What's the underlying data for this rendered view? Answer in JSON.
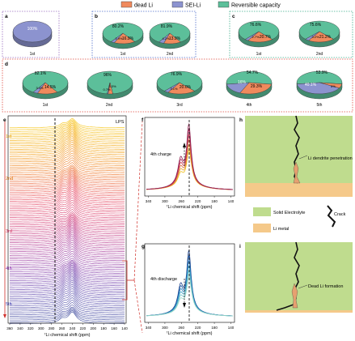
{
  "legend": {
    "items": [
      {
        "label": "dead Li",
        "color": "#f08a5d"
      },
      {
        "label": "SEI-Li",
        "color": "#8c93cf"
      },
      {
        "label": "Reversible capacity",
        "color": "#5cbf9a"
      }
    ]
  },
  "panels": {
    "a": {
      "letter": "a",
      "pies": [
        {
          "label": "1st",
          "values": {
            "dead": 0,
            "sei": 100,
            "rev": 0
          },
          "text": [
            "100%"
          ]
        }
      ]
    },
    "b": {
      "letter": "b",
      "pies": [
        {
          "label": "1st",
          "text": [
            "80.2%",
            "16.9%",
            "2.9%"
          ]
        },
        {
          "label": "2nd",
          "text": [
            "81.9%",
            "13.9%",
            "4.2%"
          ]
        }
      ]
    },
    "c": {
      "letter": "c",
      "pies": [
        {
          "label": "1st",
          "text": [
            "76.6%",
            "20.7%",
            "2.7%"
          ]
        },
        {
          "label": "2nd",
          "text": [
            "75.6%",
            "21.2%",
            "3.2%"
          ]
        }
      ]
    },
    "d": {
      "letter": "d",
      "pies": [
        {
          "label": "1st",
          "text": [
            "82.1%",
            "14.5%",
            "3.4%"
          ]
        },
        {
          "label": "2nd",
          "text": [
            "96%",
            "3.3%",
            "0.7%"
          ]
        },
        {
          "label": "3rd",
          "text": [
            "76.9%",
            "20.0%",
            "3.1%"
          ]
        },
        {
          "label": "4th",
          "text": [
            "54.7%",
            "29.3%",
            "16%"
          ]
        },
        {
          "label": "5th",
          "text": [
            "53.9%",
            "40.1%",
            "6%"
          ]
        }
      ]
    },
    "e": {
      "letter": "e",
      "lps": "LPS",
      "cycles": [
        "1st",
        "2nd",
        "3rd",
        "4th",
        "5th"
      ],
      "xlabel": "⁷Li chemical shift (ppm)",
      "ticks": [
        "360",
        "340",
        "320",
        "300",
        "280",
        "260",
        "240",
        "220",
        "200",
        "180",
        "160",
        "140"
      ]
    },
    "f": {
      "letter": "f",
      "annotation": "4th charge",
      "xlabel": "⁷Li chemical shift (ppm)",
      "ticks": [
        "340",
        "300",
        "260",
        "220",
        "180",
        "140"
      ]
    },
    "g": {
      "letter": "g",
      "annotation": "4th discharge",
      "xlabel": "⁷Li chemical shift (ppm)",
      "ticks": [
        "340",
        "300",
        "260",
        "220",
        "180",
        "140"
      ]
    },
    "h": {
      "letter": "h",
      "label": "Li dendrite penetration"
    },
    "i": {
      "letter": "i",
      "label": "Dead Li formation"
    },
    "key": {
      "solid": "Solid Electrolyte",
      "metal": "Li metal",
      "crack": "Crack"
    }
  },
  "chart_data": {
    "type": "pie",
    "series": [
      {
        "panel": "a",
        "cycle": "1st",
        "dead": 0,
        "sei": 100,
        "rev": 0
      },
      {
        "panel": "b",
        "cycle": "1st",
        "rev": 80.2,
        "dead": 16.9,
        "sei": 2.9
      },
      {
        "panel": "b",
        "cycle": "2nd",
        "rev": 81.9,
        "dead": 13.9,
        "sei": 4.2
      },
      {
        "panel": "c",
        "cycle": "1st",
        "rev": 76.6,
        "dead": 20.7,
        "sei": 2.7
      },
      {
        "panel": "c",
        "cycle": "2nd",
        "rev": 75.6,
        "dead": 21.2,
        "sei": 3.2
      },
      {
        "panel": "d",
        "cycle": "1st",
        "rev": 82.1,
        "dead": 14.5,
        "sei": 3.4
      },
      {
        "panel": "d",
        "cycle": "2nd",
        "rev": 96,
        "dead": 3.3,
        "sei": 0.7
      },
      {
        "panel": "d",
        "cycle": "3rd",
        "rev": 76.9,
        "dead": 20.0,
        "sei": 3.1
      },
      {
        "panel": "d",
        "cycle": "4th",
        "rev": 54.7,
        "dead": 29.3,
        "sei": 16
      },
      {
        "panel": "d",
        "cycle": "5th",
        "rev": 53.9,
        "dead": 6,
        "sei": 40.1
      }
    ]
  }
}
